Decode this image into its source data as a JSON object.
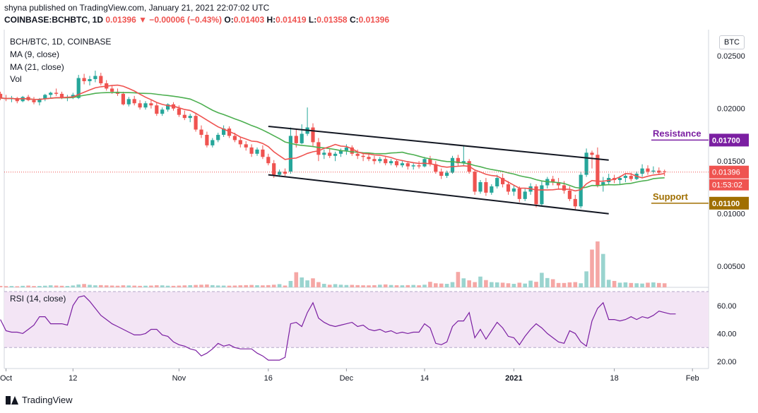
{
  "header": {
    "published": "shyna published on TradingView.com, January 21, 2021 22:07:02 UTC",
    "pair": "COINBASE:BCHBTC, 1D",
    "last": "0.01396",
    "change": "▼ −0.00006 (−0.43%)",
    "o_label": "O:",
    "o": "0.01403",
    "h_label": "H:",
    "h": "0.01419",
    "l_label": "L:",
    "l": "0.01358",
    "c_label": "C:",
    "c": "0.01396"
  },
  "legend": {
    "symbol": "BCH/BTC, 1D, COINBASE",
    "ma9": "MA (9, close)",
    "ma21": "MA (21, close)",
    "vol": "Vol",
    "rsi": "RSI (14, close)"
  },
  "currency_button": "BTC",
  "footer": {
    "brand": "TradingView"
  },
  "colors": {
    "up": "#26a69a",
    "down": "#ef5350",
    "ma9": "#ef5350",
    "ma21": "#4caf50",
    "rsi_line": "#7b1fa2",
    "rsi_band": "#f3e5f5",
    "resistance": "#7b1fa2",
    "support": "#a06f00"
  },
  "chart_data": [
    {
      "type": "candlestick",
      "title": "BCH/BTC, 1D, COINBASE",
      "ylim": [
        0.003,
        0.0275
      ],
      "y_ticks": [
        "0.02500",
        "0.02000",
        "0.01500",
        "0.01000",
        "0.00500"
      ],
      "x_tick_labels": [
        "Oct",
        "12",
        "Nov",
        "16",
        "Dec",
        "14",
        "2021",
        "18",
        "Feb"
      ],
      "x_tick_days": [
        0,
        12,
        31,
        47,
        61,
        75,
        91,
        109,
        123
      ],
      "ohlc_day_start": -1,
      "ohlc": [
        [
          0.0214,
          0.0216,
          0.0208,
          0.021
        ],
        [
          0.021,
          0.0213,
          0.0207,
          0.0209
        ],
        [
          0.0209,
          0.0212,
          0.0206,
          0.021
        ],
        [
          0.021,
          0.0211,
          0.0205,
          0.0207
        ],
        [
          0.0207,
          0.0212,
          0.0206,
          0.0211
        ],
        [
          0.0211,
          0.0213,
          0.0207,
          0.0208
        ],
        [
          0.0208,
          0.0211,
          0.0204,
          0.0206
        ],
        [
          0.0206,
          0.021,
          0.0203,
          0.0209
        ],
        [
          0.0209,
          0.0214,
          0.0207,
          0.0213
        ],
        [
          0.0213,
          0.0216,
          0.021,
          0.0215
        ],
        [
          0.0215,
          0.0219,
          0.0212,
          0.0214
        ],
        [
          0.0214,
          0.0216,
          0.0209,
          0.021
        ],
        [
          0.021,
          0.0213,
          0.0207,
          0.0211
        ],
        [
          0.0211,
          0.0215,
          0.0209,
          0.0213
        ],
        [
          0.021,
          0.0232,
          0.0209,
          0.0229
        ],
        [
          0.0229,
          0.0233,
          0.0223,
          0.0226
        ],
        [
          0.0226,
          0.0231,
          0.0222,
          0.0228
        ],
        [
          0.0228,
          0.0236,
          0.0225,
          0.0231
        ],
        [
          0.0231,
          0.0234,
          0.0222,
          0.0224
        ],
        [
          0.0224,
          0.0227,
          0.0217,
          0.0219
        ],
        [
          0.0219,
          0.0222,
          0.0214,
          0.0216
        ],
        [
          0.0216,
          0.0219,
          0.0212,
          0.0214
        ],
        [
          0.0214,
          0.0216,
          0.0203,
          0.0204
        ],
        [
          0.0204,
          0.0211,
          0.0202,
          0.0209
        ],
        [
          0.0209,
          0.0212,
          0.0203,
          0.0205
        ],
        [
          0.0205,
          0.0208,
          0.0199,
          0.0201
        ],
        [
          0.0201,
          0.0207,
          0.0199,
          0.0205
        ],
        [
          0.0205,
          0.0208,
          0.02,
          0.0203
        ],
        [
          0.0203,
          0.0206,
          0.0193,
          0.0195
        ],
        [
          0.0195,
          0.0201,
          0.0193,
          0.0199
        ],
        [
          0.0199,
          0.0205,
          0.0197,
          0.0204
        ],
        [
          0.0204,
          0.0206,
          0.0198,
          0.02
        ],
        [
          0.02,
          0.0203,
          0.0192,
          0.0194
        ],
        [
          0.0194,
          0.0198,
          0.0189,
          0.0191
        ],
        [
          0.0191,
          0.0195,
          0.0187,
          0.0193
        ],
        [
          0.0193,
          0.0196,
          0.0178,
          0.018
        ],
        [
          0.018,
          0.0184,
          0.0172,
          0.0175
        ],
        [
          0.0175,
          0.0178,
          0.0163,
          0.0165
        ],
        [
          0.0165,
          0.0172,
          0.0163,
          0.017
        ],
        [
          0.017,
          0.0177,
          0.0168,
          0.0175
        ],
        [
          0.0175,
          0.0184,
          0.0173,
          0.0181
        ],
        [
          0.0181,
          0.0183,
          0.0172,
          0.0174
        ],
        [
          0.0174,
          0.0177,
          0.0168,
          0.017
        ],
        [
          0.017,
          0.0173,
          0.0163,
          0.0166
        ],
        [
          0.0166,
          0.0169,
          0.016,
          0.0163
        ],
        [
          0.0163,
          0.0166,
          0.0154,
          0.0157
        ],
        [
          0.0157,
          0.0163,
          0.0155,
          0.0161
        ],
        [
          0.0161,
          0.0165,
          0.0152,
          0.0154
        ],
        [
          0.0154,
          0.0157,
          0.0146,
          0.0148
        ],
        [
          0.0148,
          0.0151,
          0.0134,
          0.0137
        ],
        [
          0.0137,
          0.0142,
          0.0135,
          0.014
        ],
        [
          0.014,
          0.0143,
          0.0136,
          0.0138
        ],
        [
          0.014,
          0.0182,
          0.0138,
          0.0174
        ],
        [
          0.0174,
          0.018,
          0.0163,
          0.0167
        ],
        [
          0.0167,
          0.0185,
          0.0166,
          0.0176
        ],
        [
          0.0176,
          0.0201,
          0.0174,
          0.0182
        ],
        [
          0.0182,
          0.0186,
          0.0164,
          0.0168
        ],
        [
          0.0168,
          0.0172,
          0.015,
          0.0156
        ],
        [
          0.0156,
          0.0161,
          0.0152,
          0.0158
        ],
        [
          0.0158,
          0.0162,
          0.0153,
          0.0155
        ],
        [
          0.0155,
          0.0159,
          0.015,
          0.0157
        ],
        [
          0.0157,
          0.0162,
          0.0154,
          0.016
        ],
        [
          0.016,
          0.0166,
          0.0156,
          0.0163
        ],
        [
          0.0163,
          0.0165,
          0.0155,
          0.0157
        ],
        [
          0.0157,
          0.0161,
          0.0152,
          0.0155
        ],
        [
          0.0155,
          0.0158,
          0.015,
          0.0154
        ],
        [
          0.0154,
          0.0157,
          0.015,
          0.0152
        ],
        [
          0.0152,
          0.0155,
          0.0147,
          0.015
        ],
        [
          0.015,
          0.0154,
          0.0148,
          0.0152
        ],
        [
          0.0152,
          0.0154,
          0.0146,
          0.0148
        ],
        [
          0.0148,
          0.0152,
          0.0146,
          0.015
        ],
        [
          0.015,
          0.0151,
          0.0144,
          0.0146
        ],
        [
          0.0146,
          0.015,
          0.0144,
          0.0148
        ],
        [
          0.0148,
          0.015,
          0.0142,
          0.0145
        ],
        [
          0.0145,
          0.0148,
          0.0142,
          0.0146
        ],
        [
          0.0146,
          0.015,
          0.0143,
          0.0145
        ],
        [
          0.0145,
          0.0154,
          0.0144,
          0.0152
        ],
        [
          0.0152,
          0.0155,
          0.0145,
          0.0147
        ],
        [
          0.0147,
          0.015,
          0.0138,
          0.014
        ],
        [
          0.014,
          0.0143,
          0.0133,
          0.0136
        ],
        [
          0.0136,
          0.0141,
          0.0134,
          0.0139
        ],
        [
          0.0139,
          0.0155,
          0.0138,
          0.0153
        ],
        [
          0.0153,
          0.0156,
          0.0145,
          0.0148
        ],
        [
          0.0148,
          0.0165,
          0.0146,
          0.015
        ],
        [
          0.015,
          0.0152,
          0.0138,
          0.014
        ],
        [
          0.014,
          0.0142,
          0.0118,
          0.0121
        ],
        [
          0.0121,
          0.0132,
          0.0119,
          0.013
        ],
        [
          0.013,
          0.0134,
          0.0117,
          0.012
        ],
        [
          0.012,
          0.0128,
          0.0118,
          0.0126
        ],
        [
          0.0126,
          0.0137,
          0.0124,
          0.0134
        ],
        [
          0.0134,
          0.0138,
          0.0125,
          0.0128
        ],
        [
          0.0128,
          0.0131,
          0.0118,
          0.0121
        ],
        [
          0.0121,
          0.0127,
          0.0117,
          0.0124
        ],
        [
          0.0124,
          0.0126,
          0.0111,
          0.0114
        ],
        [
          0.0114,
          0.0124,
          0.0112,
          0.0121
        ],
        [
          0.0121,
          0.0129,
          0.0118,
          0.0126
        ],
        [
          0.0126,
          0.0128,
          0.0106,
          0.0109
        ],
        [
          0.0109,
          0.0131,
          0.0107,
          0.0127
        ],
        [
          0.0127,
          0.0135,
          0.0124,
          0.0133
        ],
        [
          0.0133,
          0.0136,
          0.0127,
          0.013
        ],
        [
          0.013,
          0.0134,
          0.0124,
          0.0127
        ],
        [
          0.0127,
          0.0131,
          0.0119,
          0.0122
        ],
        [
          0.0122,
          0.0126,
          0.0112,
          0.0114
        ],
        [
          0.0114,
          0.0118,
          0.0104,
          0.0107
        ],
        [
          0.0107,
          0.014,
          0.0105,
          0.0137
        ],
        [
          0.0137,
          0.0162,
          0.0135,
          0.0158
        ],
        [
          0.0158,
          0.016,
          0.0143,
          0.0156
        ],
        [
          0.0156,
          0.0163,
          0.0125,
          0.0127
        ],
        [
          0.0127,
          0.0135,
          0.0121,
          0.013
        ],
        [
          0.013,
          0.0138,
          0.0127,
          0.0134
        ],
        [
          0.0134,
          0.0137,
          0.0129,
          0.0132
        ],
        [
          0.0132,
          0.0136,
          0.0128,
          0.0134
        ],
        [
          0.0134,
          0.0138,
          0.013,
          0.0136
        ],
        [
          0.0136,
          0.0139,
          0.0131,
          0.0133
        ],
        [
          0.0133,
          0.014,
          0.0132,
          0.0138
        ],
        [
          0.0138,
          0.0147,
          0.0135,
          0.0143
        ],
        [
          0.0143,
          0.0146,
          0.0137,
          0.014
        ],
        [
          0.014,
          0.0145,
          0.0138,
          0.0141
        ],
        [
          0.0141,
          0.0144,
          0.0137,
          0.0139
        ],
        [
          0.01403,
          0.01419,
          0.01358,
          0.01396
        ]
      ],
      "volume": [
        500,
        420,
        460,
        380,
        520,
        610,
        450,
        480,
        560,
        700,
        620,
        540,
        480,
        640,
        980,
        1150,
        860,
        700,
        760,
        680,
        620,
        560,
        700,
        640,
        590,
        520,
        560,
        610,
        720,
        680,
        560,
        520,
        600,
        680,
        740,
        820,
        900,
        980,
        760,
        640,
        600,
        580,
        620,
        700,
        760,
        820,
        720,
        680,
        760,
        900,
        1100,
        620,
        2200,
        5200,
        3400,
        2400,
        3100,
        1800,
        1200,
        900,
        1100,
        900,
        800,
        850,
        760,
        700,
        680,
        740,
        900,
        1000,
        800,
        720,
        700,
        760,
        820,
        700,
        900,
        1900,
        1400,
        1300,
        1200,
        1800,
        5300,
        3100,
        2400,
        1800,
        3700,
        2500,
        1800,
        1700,
        1600,
        1400,
        1200,
        1600,
        1300,
        2300,
        1900,
        5000,
        3200,
        2800,
        1500,
        1500,
        1700,
        1800,
        1400,
        5500,
        13000,
        15800,
        11500,
        2600,
        2200,
        1600,
        1700,
        1500,
        1400,
        1300,
        1600,
        1700,
        1500,
        1400,
        1300
      ],
      "volume_ylim": [
        0,
        26000
      ],
      "ma_labels": [
        "MA (9, close)",
        "MA (21, close)"
      ],
      "current_price": "0.01396",
      "countdown": "01:53:02",
      "levels": [
        {
          "name": "Resistance",
          "value": 0.017,
          "label": "0.01700"
        },
        {
          "name": "Support",
          "value": 0.011,
          "label": "0.01100"
        }
      ],
      "channel": {
        "upper": {
          "from": [
            47,
            0.0183
          ],
          "to": [
            108,
            0.0151
          ]
        },
        "lower": {
          "from": [
            47,
            0.0137
          ],
          "to": [
            108,
            0.01
          ]
        }
      }
    },
    {
      "type": "line",
      "title": "RSI (14, close)",
      "ylim": [
        15,
        72
      ],
      "y_ticks": [
        "60.00",
        "40.00",
        "20.00"
      ],
      "bands": [
        70,
        30
      ],
      "values": [
        50,
        42,
        41,
        41,
        40,
        43,
        46,
        52,
        52,
        47,
        47,
        47,
        46,
        60,
        66,
        67,
        63,
        58,
        53,
        50,
        47,
        45,
        43,
        41,
        39,
        39,
        40,
        43,
        43,
        39,
        38,
        34,
        32,
        31,
        29,
        28,
        24,
        26,
        29,
        33,
        31,
        32,
        30,
        29,
        29,
        29,
        26,
        24,
        21,
        21,
        21,
        23,
        47,
        48,
        45,
        55,
        62,
        51,
        48,
        46,
        45,
        46,
        47,
        48,
        45,
        46,
        43,
        42,
        43,
        41,
        42,
        40,
        41,
        40,
        41,
        41,
        47,
        44,
        33,
        32,
        34,
        45,
        49,
        49,
        55,
        37,
        43,
        36,
        42,
        48,
        44,
        38,
        37,
        32,
        38,
        43,
        47,
        44,
        40,
        37,
        34,
        33,
        42,
        40,
        34,
        31,
        49,
        58,
        62,
        50,
        50,
        49,
        50,
        52,
        50,
        52,
        51,
        53,
        56,
        55,
        54,
        54
      ]
    }
  ]
}
